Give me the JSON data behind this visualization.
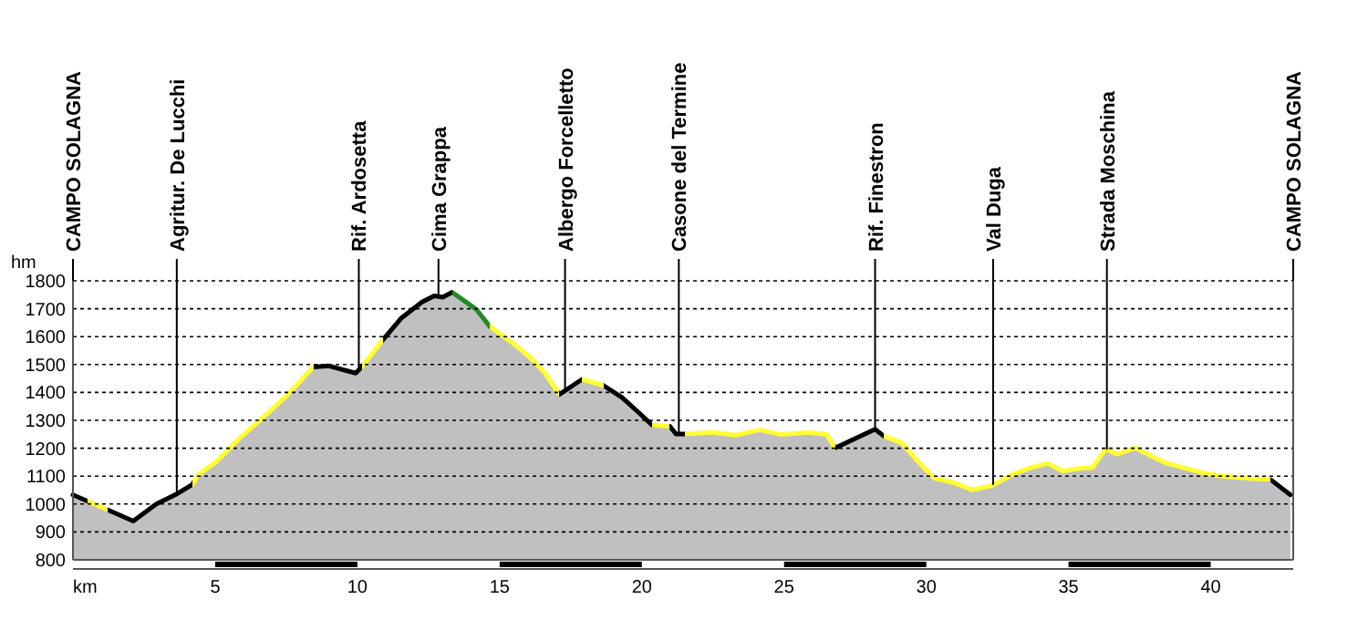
{
  "chart_data": {
    "type": "area",
    "xlabel": "km",
    "ylabel": "hm",
    "xlim": [
      0,
      42.9
    ],
    "ylim": [
      800,
      1800
    ],
    "xticks": [
      5,
      10,
      15,
      20,
      25,
      30,
      35,
      40
    ],
    "yticks": [
      800,
      900,
      1000,
      1100,
      1200,
      1300,
      1400,
      1500,
      1600,
      1700,
      1800
    ],
    "grid": "y",
    "series": [
      {
        "color": "#c0c0c0",
        "x": [
          0,
          0.5,
          1.23,
          2.12,
          2.93,
          3.67,
          4.2,
          4.4,
          5.05,
          5.9,
          6.75,
          7.6,
          8.45,
          9.0,
          9.94,
          10.15,
          10.9,
          11.53,
          12.27,
          12.7,
          13.0,
          13.33,
          14.18,
          14.65,
          15.45,
          16.1,
          16.6,
          17.1,
          17.9,
          18.65,
          19.3,
          19.9,
          20.35,
          20.98,
          21.2,
          21.5,
          22.45,
          23.3,
          24.15,
          24.9,
          25.85,
          26.5,
          26.8,
          28.2,
          28.5,
          29.15,
          29.7,
          30.3,
          30.96,
          31.6,
          32.3,
          33.1,
          33.7,
          34.25,
          34.8,
          35.3,
          35.85,
          36.3,
          36.7,
          37.35,
          37.95,
          38.4,
          39.0,
          39.64,
          40.3,
          41.4,
          42.1,
          42.8
        ],
        "values": [
          1033,
          1011,
          979,
          939,
          1000,
          1037,
          1070,
          1105,
          1153,
          1240,
          1316,
          1397,
          1491,
          1495,
          1469,
          1491,
          1589,
          1665,
          1724,
          1746,
          1741,
          1759,
          1698,
          1637,
          1578,
          1523,
          1469,
          1393,
          1447,
          1425,
          1382,
          1327,
          1284,
          1279,
          1251,
          1251,
          1257,
          1247,
          1266,
          1249,
          1257,
          1249,
          1201,
          1268,
          1244,
          1218,
          1153,
          1092,
          1077,
          1051,
          1066,
          1109,
          1131,
          1146,
          1118,
          1127,
          1131,
          1197,
          1179,
          1201,
          1170,
          1148,
          1131,
          1114,
          1101,
          1092,
          1088,
          1033
        ],
        "colors": [
          "#000000",
          "#ffff33",
          "#000000",
          "#000000",
          "#000000",
          "#000000",
          "#ffff33",
          "#ffff33",
          "#ffff33",
          "#ffff33",
          "#ffff33",
          "#ffff33",
          "#000000",
          "#000000",
          "#000000",
          "#ffff33",
          "#000000",
          "#000000",
          "#000000",
          "#000000",
          "#000000",
          "#228b22",
          "#228b22",
          "#ffff33",
          "#ffff33",
          "#ffff33",
          "#ffff33",
          "#000000",
          "#ffff33",
          "#000000",
          "#000000",
          "#000000",
          "#ffff33",
          "#000000",
          "#000000",
          "#ffff33",
          "#ffff33",
          "#ffff33",
          "#ffff33",
          "#ffff33",
          "#ffff33",
          "#ffff33",
          "#000000",
          "#000000",
          "#ffff33",
          "#ffff33",
          "#ffff33",
          "#ffff33",
          "#ffff33",
          "#ffff33",
          "#ffff33",
          "#ffff33",
          "#ffff33",
          "#ffff33",
          "#ffff33",
          "#ffff33",
          "#ffff33",
          "#ffff33",
          "#ffff33",
          "#ffff33",
          "#ffff33",
          "#ffff33",
          "#ffff33",
          "#ffff33",
          "#ffff33",
          "#ffff33",
          "#000000",
          "#000000"
        ]
      }
    ],
    "ref_lines": [
      {
        "axis": "x",
        "value": 0,
        "label": "CAMPO SOLAGNA"
      },
      {
        "axis": "x",
        "value": 3.65,
        "label": "Agritur. De Lucchi"
      },
      {
        "axis": "x",
        "value": 10.05,
        "label": "Rif. Ardosetta"
      },
      {
        "axis": "x",
        "value": 12.85,
        "label": "Cima Grappa"
      },
      {
        "axis": "x",
        "value": 17.3,
        "label": "Albergo Forcelletto"
      },
      {
        "axis": "x",
        "value": 21.3,
        "label": "Casone del Termine"
      },
      {
        "axis": "x",
        "value": 28.2,
        "label": "Rif. Finestron"
      },
      {
        "axis": "x",
        "value": 32.35,
        "label": "Val Duga"
      },
      {
        "axis": "x",
        "value": 36.35,
        "label": "Strada Moschina"
      },
      {
        "axis": "x",
        "value": 42.9,
        "label": "CAMPO SOLAGNA"
      }
    ]
  }
}
